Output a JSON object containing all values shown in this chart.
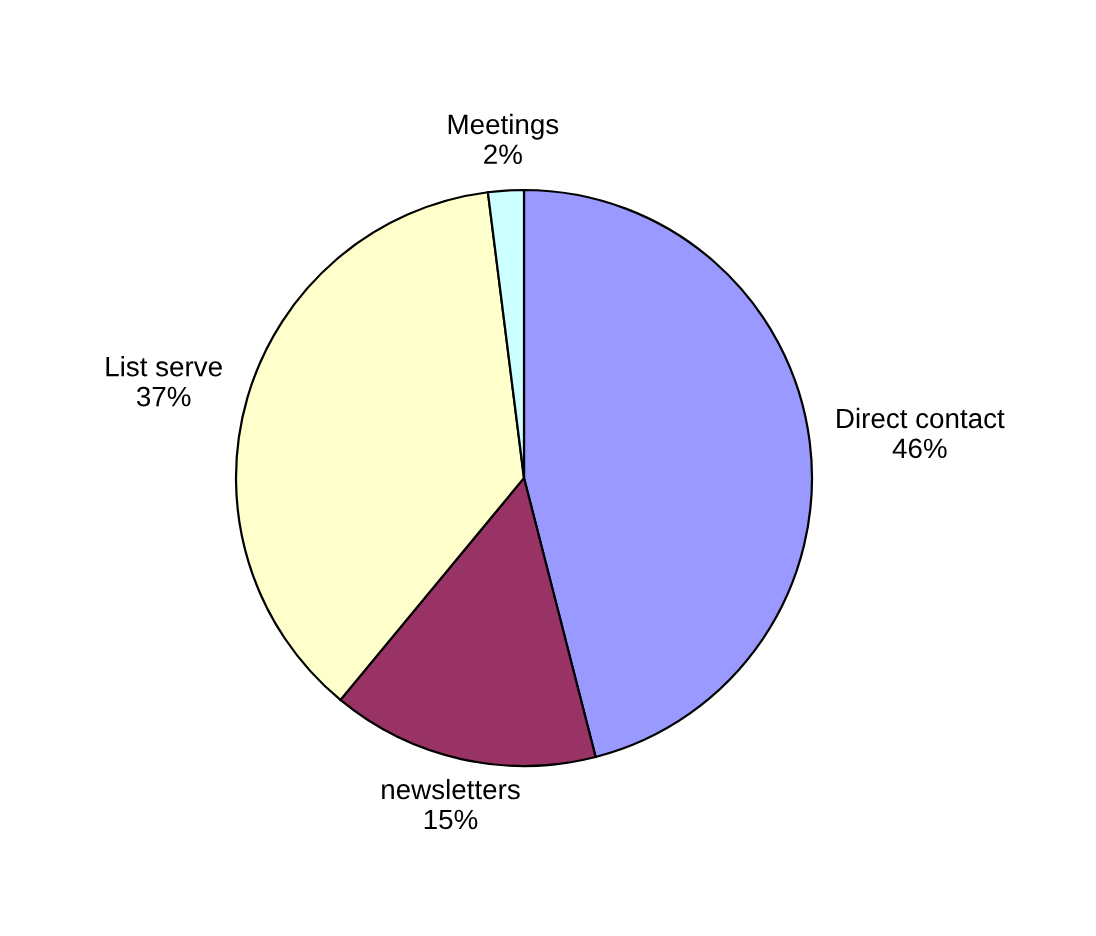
{
  "chart_data": {
    "type": "pie",
    "categories": [
      "Direct contact",
      "newsletters",
      "List serve",
      "Meetings"
    ],
    "values": [
      46,
      15,
      37,
      2
    ],
    "value_labels": [
      "46%",
      "15%",
      "37%",
      "2%"
    ],
    "colors": [
      "#9999ff",
      "#993366",
      "#ffffcc",
      "#ccffff"
    ],
    "legend": false
  }
}
